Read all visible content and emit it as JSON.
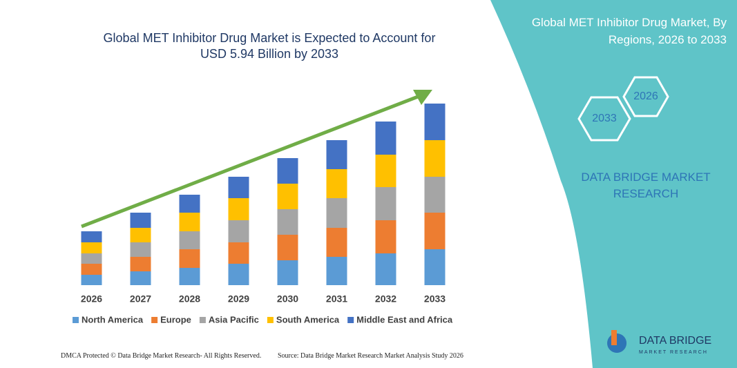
{
  "chart_data": {
    "type": "stacked_bar",
    "title": "Global MET Inhibitor Drug Market is Expected to Account for USD 5.94 Billion by 2033",
    "categories": [
      "2026",
      "2027",
      "2028",
      "2029",
      "2030",
      "2031",
      "2032",
      "2033"
    ],
    "series": [
      {
        "name": "North America",
        "color": "#5b9bd5",
        "values": [
          15,
          20,
          25,
          31,
          36,
          41,
          46,
          52
        ]
      },
      {
        "name": "Europe",
        "color": "#ed7d31",
        "values": [
          16,
          21,
          27,
          31,
          37,
          42,
          48,
          53
        ]
      },
      {
        "name": "Asia Pacific",
        "color": "#a5a5a5",
        "values": [
          15,
          21,
          26,
          32,
          37,
          43,
          48,
          52
        ]
      },
      {
        "name": "South America",
        "color": "#ffc000",
        "values": [
          16,
          21,
          27,
          32,
          37,
          42,
          47,
          53
        ]
      },
      {
        "name": "Middle East and Africa",
        "color": "#4472c4",
        "values": [
          16,
          22,
          26,
          31,
          37,
          42,
          48,
          53
        ]
      }
    ],
    "ylim": [
      0,
      280
    ]
  },
  "panel": {
    "title": "Global MET Inhibitor Drug Market, By Regions, 2026 to 2033",
    "hexagons": [
      "2026",
      "2033"
    ],
    "brand": "DATA BRIDGE MARKET RESEARCH"
  },
  "footer": {
    "left": "DMCA Protected © Data Bridge Market Research- All Rights Reserved.",
    "right": "Source: Data Bridge Market Research Market Analysis Study 2026"
  },
  "logo": {
    "name": "DATA BRIDGE",
    "tagline": "MARKET RESEARCH"
  }
}
